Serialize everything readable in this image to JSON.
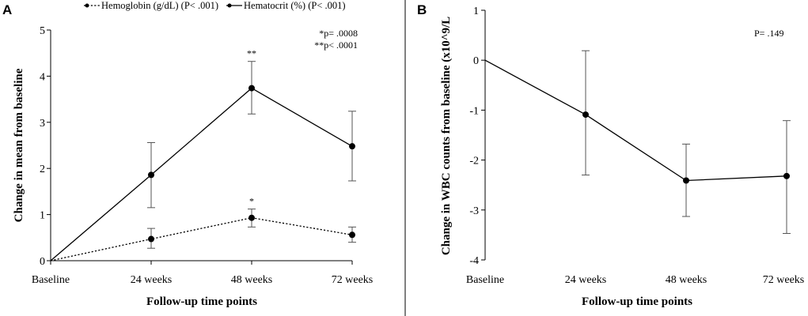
{
  "chart_data": [
    {
      "panel": "A",
      "type": "line",
      "categories": [
        "Baseline",
        "24 weeks",
        "48 weeks",
        "72 weeks"
      ],
      "xlabel": "Follow-up time points",
      "ylabel": "Change in mean from baseline",
      "ylim": [
        0,
        5
      ],
      "yticks": [
        "0",
        "1",
        "2",
        "3",
        "4",
        "5"
      ],
      "legend": [
        {
          "label": "Hemoglobin (g/dL) (P< .001)",
          "style": "dotted"
        },
        {
          "label": "Hematocrit (%) (P< .001)",
          "style": "solid"
        }
      ],
      "annotations": [
        "*p= .0008",
        "**p< .0001"
      ],
      "series": [
        {
          "name": "Hemoglobin (g/dL) (P< .001)",
          "style": "dotted",
          "values": [
            0,
            0.47,
            0.93,
            0.56
          ],
          "lower": [
            0,
            0.27,
            0.73,
            0.4
          ],
          "upper": [
            0,
            0.7,
            1.12,
            0.73
          ],
          "marks": [
            "",
            "",
            "*",
            ""
          ]
        },
        {
          "name": "Hematocrit (%) (P< .001)",
          "style": "solid",
          "values": [
            0,
            1.86,
            3.74,
            2.48
          ],
          "lower": [
            0,
            1.15,
            3.18,
            1.73
          ],
          "upper": [
            0,
            2.56,
            4.32,
            3.24
          ],
          "marks": [
            "",
            "",
            "**",
            ""
          ]
        }
      ]
    },
    {
      "panel": "B",
      "type": "line",
      "categories": [
        "Baseline",
        "24 weeks",
        "48 weeks",
        "72 weeks"
      ],
      "xlabel": "Follow-up time points",
      "ylabel": "Change in WBC counts from baseline (x10^9/L",
      "ylim": [
        -4,
        1
      ],
      "yticks": [
        "1",
        "0",
        "-1",
        "-2",
        "-3",
        "-4"
      ],
      "annotations": [
        "P= .149"
      ],
      "series": [
        {
          "name": "WBC",
          "style": "solid",
          "values": [
            0,
            -1.09,
            -2.41,
            -2.32
          ],
          "lower": [
            0,
            -2.3,
            -3.13,
            -3.47
          ],
          "upper": [
            0,
            0.19,
            -1.68,
            -1.21
          ]
        }
      ]
    }
  ]
}
